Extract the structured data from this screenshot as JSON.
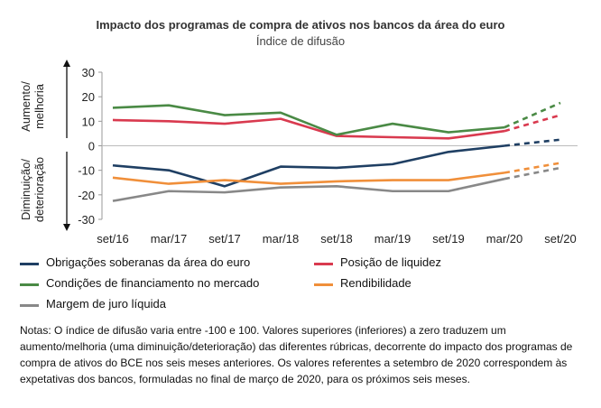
{
  "chart_data": {
    "type": "line",
    "title": "Impacto dos programas de compra de ativos nos bancos da área do euro",
    "subtitle": "Índice de difusão",
    "ylim": [
      -30,
      30
    ],
    "yticks": [
      30,
      20,
      10,
      0,
      -10,
      -20,
      -30
    ],
    "y_upper_label": "Aumento/\nmelhoria",
    "y_lower_label": "Diminuição/\ndeterioração",
    "categories": [
      "set/16",
      "mar/17",
      "set/17",
      "mar/18",
      "set/18",
      "mar/19",
      "set/19",
      "mar/20",
      "set/20"
    ],
    "series": [
      {
        "name": "Obrigações soberanas da área do euro",
        "color": "#1f3f63",
        "values": [
          -8,
          -10,
          -16.5,
          -8.5,
          -9,
          -7.5,
          -2.5,
          0,
          2.5
        ]
      },
      {
        "name": "Posição de liquidez",
        "color": "#d93a4f",
        "values": [
          10.5,
          10,
          9,
          11,
          4,
          3.5,
          3,
          6,
          12.5
        ]
      },
      {
        "name": "Condições de financiamento no mercado",
        "color": "#4a8a45",
        "values": [
          15.5,
          16.5,
          12.5,
          13.5,
          4.5,
          9,
          5.5,
          7.5,
          17.5
        ]
      },
      {
        "name": "Rendibilidade",
        "color": "#f08f3a",
        "values": [
          -13,
          -15.5,
          -14,
          -15.5,
          -14.5,
          -14,
          -14,
          -11,
          -7
        ]
      },
      {
        "name": "Margem de juro líquida",
        "color": "#888888",
        "values": [
          -22.5,
          -18.5,
          -19,
          -17,
          -16.5,
          -18.5,
          -18.5,
          -13.5,
          -9
        ]
      }
    ],
    "projection_from_index": 7,
    "legend_position": "bottom"
  },
  "notes": "Notas: O índice de difusão varia entre -100 e 100. Valores superiores (inferiores) a zero traduzem um aumento/melhoria (uma diminuição/deterioração) das diferentes rúbricas, decorrente do impacto dos programas de compra de ativos do BCE nos seis meses anteriores. Os valores referentes a setembro de 2020 correspondem às expetativas dos bancos, formuladas no final de março de 2020, para os próximos seis meses."
}
